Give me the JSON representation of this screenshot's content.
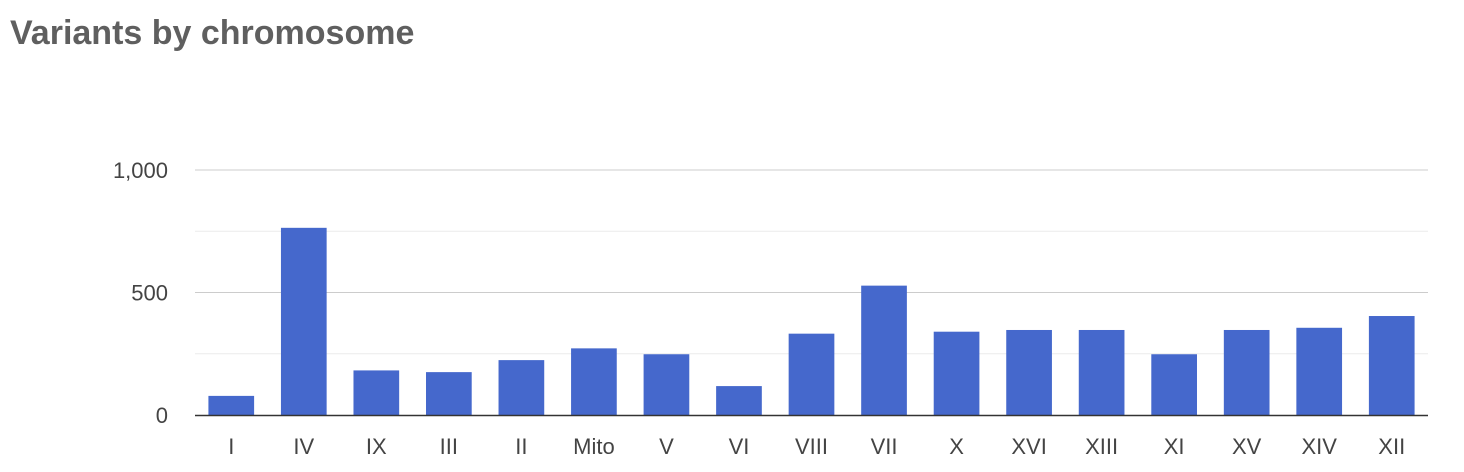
{
  "chart_data": {
    "type": "bar",
    "title": "Variants by chromosome",
    "xlabel": "",
    "ylabel": "",
    "categories": [
      "I",
      "IV",
      "IX",
      "III",
      "II",
      "Mito",
      "V",
      "VI",
      "VIII",
      "VII",
      "X",
      "XVI",
      "XIII",
      "XI",
      "XV",
      "XIV",
      "XII"
    ],
    "values": [
      78,
      764,
      182,
      175,
      224,
      272,
      248,
      118,
      332,
      528,
      340,
      347,
      347,
      248,
      347,
      356,
      404
    ],
    "ylim": [
      0,
      1000
    ],
    "y_ticks": [
      0,
      500,
      1000
    ],
    "y_tick_labels": [
      "0",
      "500",
      "1,000"
    ],
    "minor_gridlines": [
      250,
      750
    ],
    "grid": true,
    "legend": "none",
    "bar_color": "#4568cc",
    "gridline_color": "#cccccc",
    "minor_gridline_color": "#ebebeb",
    "baseline_color": "#333333"
  }
}
